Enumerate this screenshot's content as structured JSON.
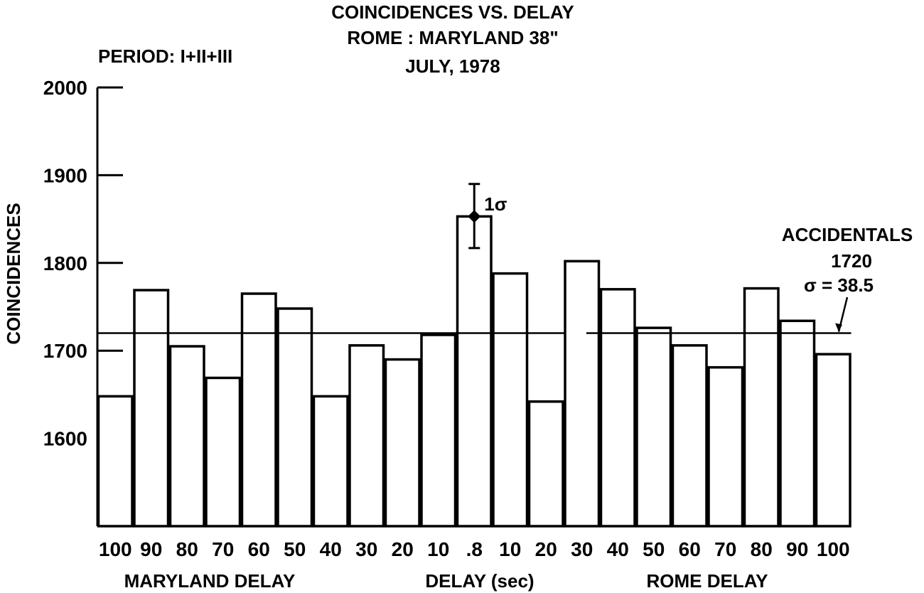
{
  "chart_data": {
    "type": "bar",
    "title": "COINCIDENCES VS. DELAY",
    "subtitle": [
      "ROME : MARYLAND 38\"",
      "JULY, 1978"
    ],
    "period_label": "PERIOD: I+II+III",
    "ylabel": "COINCIDENCES",
    "ylim": [
      1500,
      2000
    ],
    "yticks": [
      1600,
      1700,
      1800,
      1900,
      2000
    ],
    "categories": [
      "100",
      "90",
      "80",
      "70",
      "60",
      "50",
      "40",
      "30",
      "20",
      "10",
      ".8",
      "10",
      "20",
      "30",
      "40",
      "50",
      "60",
      "70",
      "80",
      "90",
      "100"
    ],
    "values": [
      1648,
      1769,
      1705,
      1669,
      1765,
      1748,
      1648,
      1706,
      1690,
      1718,
      1853,
      1788,
      1642,
      1802,
      1770,
      1726,
      1706,
      1681,
      1771,
      1734,
      1696
    ],
    "xgroup_labels": {
      "left": "MARYLAND DELAY",
      "center": "DELAY (sec)",
      "right": "ROME DELAY"
    },
    "error_bar": {
      "category_index": 10,
      "value": 1853,
      "low": 1817,
      "high": 1890,
      "label": "1σ"
    },
    "accidentals": {
      "value": 1720,
      "label": "ACCIDENTALS",
      "value_label": "1720",
      "sigma_label": "σ = 38.5"
    },
    "grid": false,
    "legend": "none"
  }
}
